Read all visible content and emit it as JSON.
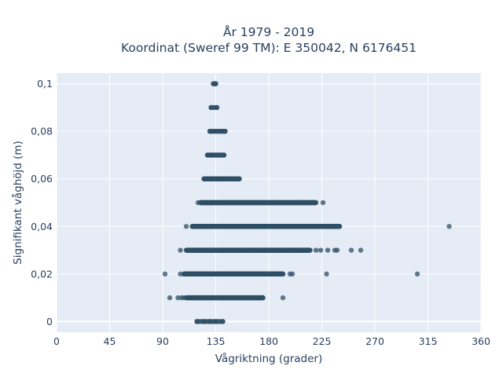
{
  "chart_data": {
    "type": "scatter",
    "title_line1": "År 1979 - 2019",
    "title_line2": "Koordinat (Sweref 99 TM): E 350042, N 6176451",
    "xlabel": "Vågriktning (grader)",
    "ylabel": "Signifikant våghöjd (m)",
    "xlim": [
      0,
      360
    ],
    "ylim": [
      -0.0045,
      0.1045
    ],
    "x_ticks": [
      0,
      45,
      90,
      135,
      180,
      225,
      270,
      315,
      360
    ],
    "x_tick_labels": [
      "0",
      "45",
      "90",
      "135",
      "180",
      "225",
      "270",
      "315",
      "360"
    ],
    "y_ticks": [
      0,
      0.02,
      0.04,
      0.06,
      0.08,
      0.1
    ],
    "y_tick_labels": [
      "0",
      "0,02",
      "0,04",
      "0,06",
      "0,08",
      "0,1"
    ],
    "grid": true,
    "marker_color": "#2f4f66",
    "background": "#e5ecf6",
    "bands": [
      {
        "y": 0.0,
        "x_min": 119,
        "x_max": 141,
        "density": 6
      },
      {
        "y": 0.01,
        "x_min": 110,
        "x_max": 175,
        "density": 30
      },
      {
        "y": 0.02,
        "x_min": 108,
        "x_max": 192,
        "density": 40
      },
      {
        "y": 0.03,
        "x_min": 110,
        "x_max": 215,
        "density": 40
      },
      {
        "y": 0.04,
        "x_min": 115,
        "x_max": 240,
        "density": 40
      },
      {
        "y": 0.05,
        "x_min": 122,
        "x_max": 220,
        "density": 30
      },
      {
        "y": 0.06,
        "x_min": 125,
        "x_max": 155,
        "density": 22
      },
      {
        "y": 0.07,
        "x_min": 128,
        "x_max": 142,
        "density": 14
      },
      {
        "y": 0.08,
        "x_min": 130,
        "x_max": 143,
        "density": 10
      },
      {
        "y": 0.09,
        "x_min": 131,
        "x_max": 136,
        "density": 5
      },
      {
        "y": 0.1,
        "x_min": 133,
        "x_max": 135,
        "density": 3
      }
    ],
    "points": [
      {
        "x": 119,
        "y": 0
      },
      {
        "x": 125,
        "y": 0
      },
      {
        "x": 130,
        "y": 0
      },
      {
        "x": 135,
        "y": 0
      },
      {
        "x": 141,
        "y": 0
      },
      {
        "x": 96,
        "y": 0.01
      },
      {
        "x": 103,
        "y": 0.01
      },
      {
        "x": 106,
        "y": 0.01
      },
      {
        "x": 108,
        "y": 0.01
      },
      {
        "x": 170,
        "y": 0.01
      },
      {
        "x": 175,
        "y": 0.01
      },
      {
        "x": 192,
        "y": 0.01
      },
      {
        "x": 92,
        "y": 0.02
      },
      {
        "x": 105,
        "y": 0.02
      },
      {
        "x": 192,
        "y": 0.02
      },
      {
        "x": 198,
        "y": 0.02
      },
      {
        "x": 200,
        "y": 0.02
      },
      {
        "x": 229,
        "y": 0.02
      },
      {
        "x": 306,
        "y": 0.02
      },
      {
        "x": 105,
        "y": 0.03
      },
      {
        "x": 220,
        "y": 0.03
      },
      {
        "x": 224,
        "y": 0.03
      },
      {
        "x": 230,
        "y": 0.03
      },
      {
        "x": 236,
        "y": 0.03
      },
      {
        "x": 238,
        "y": 0.03
      },
      {
        "x": 250,
        "y": 0.03
      },
      {
        "x": 258,
        "y": 0.03
      },
      {
        "x": 110,
        "y": 0.04
      },
      {
        "x": 236,
        "y": 0.04
      },
      {
        "x": 240,
        "y": 0.04
      },
      {
        "x": 333,
        "y": 0.04
      },
      {
        "x": 120,
        "y": 0.05
      },
      {
        "x": 193,
        "y": 0.05
      },
      {
        "x": 200,
        "y": 0.05
      },
      {
        "x": 205,
        "y": 0.05
      },
      {
        "x": 212,
        "y": 0.05
      },
      {
        "x": 218,
        "y": 0.05
      },
      {
        "x": 226,
        "y": 0.05
      },
      {
        "x": 125,
        "y": 0.06
      },
      {
        "x": 155,
        "y": 0.06
      },
      {
        "x": 128,
        "y": 0.07
      },
      {
        "x": 142,
        "y": 0.07
      },
      {
        "x": 130,
        "y": 0.08
      },
      {
        "x": 143,
        "y": 0.08
      },
      {
        "x": 131,
        "y": 0.09
      },
      {
        "x": 136,
        "y": 0.09
      },
      {
        "x": 133,
        "y": 0.1
      },
      {
        "x": 135,
        "y": 0.1
      }
    ]
  }
}
